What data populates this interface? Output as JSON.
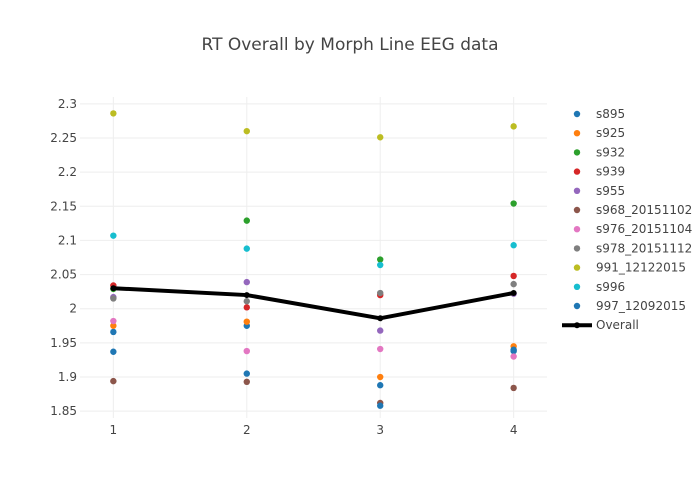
{
  "chart_data": {
    "type": "scatter",
    "title": "RT Overall by Morph Line EEG data",
    "xlabel": "",
    "ylabel": "",
    "x": [
      1,
      2,
      3,
      4
    ],
    "x_tick_labels": [
      "1",
      "2",
      "3",
      "4"
    ],
    "y_tick_labels": [
      "1.85",
      "1.9",
      "1.95",
      "2",
      "2.05",
      "2.1",
      "2.15",
      "2.2",
      "2.25",
      "2.3"
    ],
    "xlim": [
      0.75,
      4.25
    ],
    "ylim": [
      1.84,
      2.31
    ],
    "grid": true,
    "legend_position": "right",
    "series": [
      {
        "name": "s895",
        "color": "#1f77b4",
        "mode": "markers",
        "values": [
          1.966,
          1.975,
          1.888,
          1.938
        ]
      },
      {
        "name": "s925",
        "color": "#ff7f0e",
        "mode": "markers",
        "values": [
          1.975,
          1.981,
          1.9,
          1.945
        ]
      },
      {
        "name": "s932",
        "color": "#2ca02c",
        "mode": "markers",
        "values": [
          2.029,
          2.129,
          2.072,
          2.154
        ]
      },
      {
        "name": "s939",
        "color": "#d62728",
        "mode": "markers",
        "values": [
          2.034,
          2.002,
          2.02,
          2.048
        ]
      },
      {
        "name": "s955",
        "color": "#9467bd",
        "mode": "markers",
        "values": [
          2.017,
          2.039,
          1.968,
          2.022
        ]
      },
      {
        "name": "s968_20151102",
        "color": "#8c564b",
        "mode": "markers",
        "values": [
          1.894,
          1.893,
          1.862,
          1.884
        ]
      },
      {
        "name": "s976_20151104",
        "color": "#e377c2",
        "mode": "markers",
        "values": [
          1.982,
          1.938,
          1.941,
          1.93
        ]
      },
      {
        "name": "s978_20151112",
        "color": "#7f7f7f",
        "mode": "markers",
        "values": [
          2.015,
          2.011,
          2.023,
          2.036
        ]
      },
      {
        "name": "991_12122015",
        "color": "#bcbd22",
        "mode": "markers",
        "values": [
          2.286,
          2.26,
          2.251,
          2.267
        ]
      },
      {
        "name": "s996",
        "color": "#17becf",
        "mode": "markers",
        "values": [
          2.107,
          2.088,
          2.064,
          2.093
        ]
      },
      {
        "name": "997_12092015",
        "color": "#1f77b4",
        "mode": "markers",
        "values": [
          1.937,
          1.905,
          1.858,
          1.94
        ]
      },
      {
        "name": "Overall",
        "color": "#000000",
        "mode": "lines+markers",
        "values": [
          2.03,
          2.02,
          1.986,
          2.023
        ]
      }
    ]
  }
}
